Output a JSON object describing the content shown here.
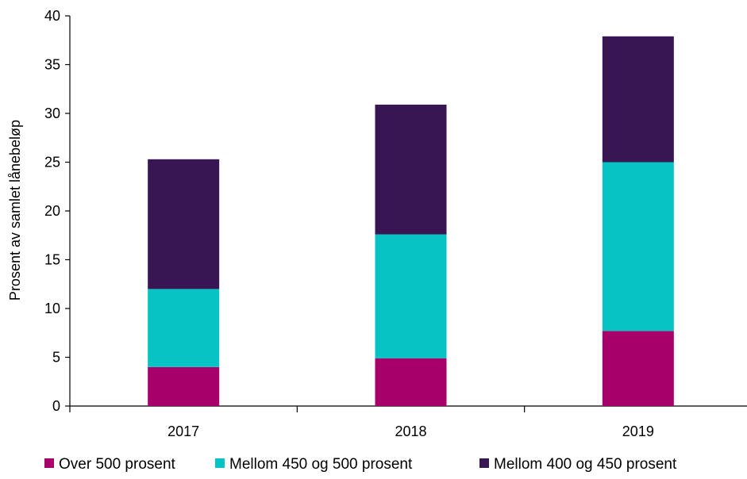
{
  "chart_data": {
    "type": "bar",
    "stacked": true,
    "title": "",
    "xlabel": "",
    "ylabel": "Prosent av samlet lånebeløp",
    "categories": [
      "2017",
      "2018",
      "2019"
    ],
    "series": [
      {
        "name": "Over 500 prosent",
        "color": "#A8006A",
        "values": [
          4.0,
          4.9,
          7.7
        ]
      },
      {
        "name": "Mellom 450 og 500 prosent",
        "color": "#08C3C3",
        "values": [
          8.0,
          12.7,
          17.3
        ]
      },
      {
        "name": "Mellom 400 og 450 prosent",
        "color": "#381653",
        "values": [
          13.3,
          13.3,
          12.9
        ]
      }
    ],
    "ylim": [
      0,
      40
    ],
    "yticks": [
      0,
      5,
      10,
      15,
      20,
      25,
      30,
      35,
      40
    ],
    "grid": false,
    "legend_position": "bottom"
  }
}
